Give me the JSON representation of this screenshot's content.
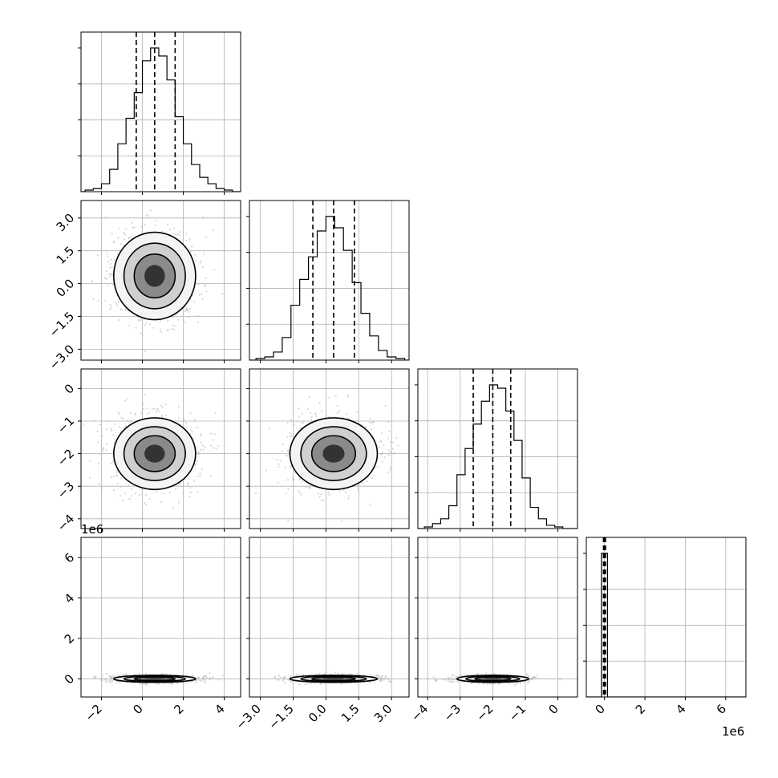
{
  "chart_data": {
    "type": "corner",
    "parameters": 4,
    "axis_tick_labels": {
      "p0": [
        "−2",
        "0",
        "2",
        "4"
      ],
      "p1": [
        "−3.0",
        "−1.5",
        "0.0",
        "1.5",
        "3.0"
      ],
      "p2": [
        "−4",
        "−3",
        "−2",
        "−1",
        "0"
      ],
      "p3": [
        "0",
        "2",
        "4",
        "6"
      ]
    },
    "offset_labels": {
      "p3_y": "1e6",
      "p3_x": "1e6"
    },
    "axis_ranges": {
      "p0": [
        -3.0,
        4.8
      ],
      "p1": [
        -3.5,
        3.8
      ],
      "p2": [
        -4.3,
        0.6
      ],
      "p3_scaled_1e6": [
        -0.9,
        7.0
      ]
    },
    "quantiles": {
      "p0": [
        -0.3,
        0.6,
        1.6
      ],
      "p1": [
        -0.6,
        0.35,
        1.3
      ],
      "p2": [
        -2.6,
        -2.0,
        -1.45
      ],
      "p3_scaled_1e6": [
        -0.05,
        0.0,
        0.05
      ]
    },
    "histograms": [
      {
        "param": "p0",
        "bins": [
          -2.8,
          -2.4,
          -2.0,
          -1.6,
          -1.2,
          -0.8,
          -0.4,
          0.0,
          0.4,
          0.8,
          1.2,
          1.6,
          2.0,
          2.4,
          2.8,
          3.2,
          3.6,
          4.0,
          4.4
        ],
        "counts": [
          1,
          2,
          5,
          14,
          30,
          46,
          62,
          82,
          90,
          85,
          70,
          47,
          30,
          17,
          9,
          5,
          2,
          1,
          0
        ]
      },
      {
        "param": "p1",
        "bins": [
          -3.2,
          -2.8,
          -2.4,
          -2.0,
          -1.6,
          -1.2,
          -0.8,
          -0.4,
          0.0,
          0.4,
          0.8,
          1.2,
          1.6,
          2.0,
          2.4,
          2.8,
          3.2
        ],
        "counts": [
          1,
          2,
          5,
          14,
          34,
          50,
          64,
          80,
          89,
          82,
          68,
          48,
          29,
          15,
          6,
          2,
          1
        ]
      },
      {
        "param": "p2",
        "bins": [
          -4.1,
          -3.85,
          -3.6,
          -3.35,
          -3.1,
          -2.85,
          -2.6,
          -2.35,
          -2.1,
          -1.85,
          -1.6,
          -1.35,
          -1.1,
          -0.85,
          -0.6,
          -0.35,
          -0.1
        ],
        "counts": [
          1,
          3,
          6,
          14,
          33,
          49,
          64,
          78,
          88,
          86,
          72,
          54,
          31,
          13,
          6,
          2,
          1
        ]
      },
      {
        "param": "p3_scaled_1e6",
        "bins": [
          -0.15,
          0.15
        ],
        "counts": [
          100,
          0
        ]
      }
    ],
    "density_2d": [
      {
        "x": "p0",
        "y": "p1",
        "center": [
          0.6,
          0.35
        ],
        "sigma": [
          1.0,
          1.0
        ]
      },
      {
        "x": "p0",
        "y": "p2",
        "center": [
          0.6,
          -2.0
        ],
        "sigma": [
          1.0,
          0.55
        ]
      },
      {
        "x": "p1",
        "y": "p2",
        "center": [
          0.35,
          -2.0
        ],
        "sigma": [
          1.0,
          0.55
        ]
      },
      {
        "x": "p0",
        "y": "p3_scaled_1e6",
        "center": [
          0.6,
          0.0
        ],
        "sigma": [
          1.0,
          0.05
        ]
      },
      {
        "x": "p1",
        "y": "p3_scaled_1e6",
        "center": [
          0.35,
          0.0
        ],
        "sigma": [
          1.0,
          0.05
        ]
      },
      {
        "x": "p2",
        "y": "p3_scaled_1e6",
        "center": [
          -2.0,
          0.0
        ],
        "sigma": [
          0.55,
          0.05
        ]
      }
    ],
    "grid": true
  },
  "colors": {
    "line": "#000000",
    "grid": "#b0b0b0",
    "scatter": "#bdbdbd",
    "density_dark": "#000000",
    "density_light": "#f2f2f2"
  }
}
